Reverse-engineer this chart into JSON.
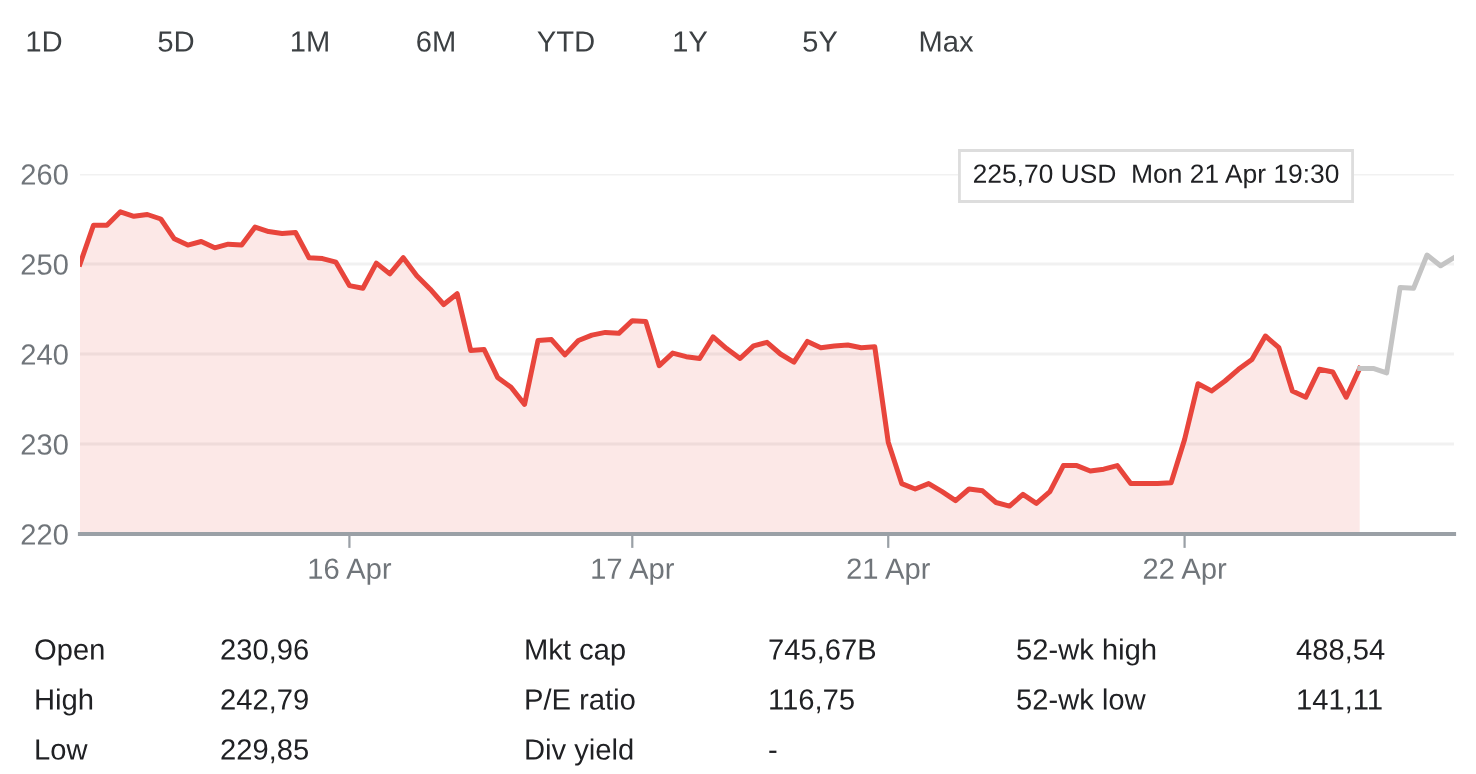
{
  "chart_data": [
    {
      "type": "other",
      "annotations": [
        "1D",
        "5D",
        "1M",
        "6M",
        "YTD",
        "1Y",
        "5Y",
        "Max"
      ]
    },
    {
      "type": "line",
      "categories": [
        null,
        null,
        null,
        null,
        null,
        null,
        null,
        null,
        null,
        null,
        null,
        null,
        null,
        null,
        null,
        null,
        null,
        null,
        null,
        null,
        "16 Apr",
        null,
        null,
        null,
        null,
        null,
        null,
        null,
        null,
        null,
        null,
        null,
        null,
        null,
        null,
        null,
        null,
        null,
        null,
        null,
        null,
        "17 Apr",
        null,
        null,
        null,
        null,
        null,
        null,
        null,
        null,
        null,
        null,
        null,
        null,
        null,
        null,
        null,
        null,
        null,
        null,
        "21 Apr",
        null,
        null,
        null,
        null,
        null,
        null,
        null,
        null,
        null,
        null,
        null,
        null,
        null,
        null,
        null,
        null,
        null,
        null,
        null,
        null,
        null,
        "22 Apr",
        null,
        null,
        null,
        null,
        null,
        null,
        null,
        null,
        null,
        null,
        null,
        null,
        null,
        null,
        null,
        null,
        null,
        null,
        null,
        null
      ],
      "series": [
        {
          "type": "area",
          "color": "#e8453c",
          "values": [
            250.0,
            254.3,
            254.3,
            255.8,
            255.3,
            255.5,
            255.0,
            252.8,
            252.1,
            252.5,
            251.8,
            252.2,
            252.1,
            254.1,
            253.6,
            253.4,
            253.5,
            250.7,
            250.6,
            250.2,
            247.6,
            247.3,
            250.1,
            248.9,
            250.7,
            248.7,
            247.2,
            245.5,
            246.7,
            240.4,
            240.5,
            237.4,
            236.3,
            234.4,
            241.5,
            241.6,
            239.9,
            241.5,
            242.1,
            242.4,
            242.3,
            243.7,
            243.6,
            238.7,
            240.1,
            239.7,
            239.5,
            241.9,
            240.6,
            239.5,
            240.9,
            241.3,
            240.0,
            239.1,
            241.4,
            240.7,
            240.9,
            241.0,
            240.7,
            240.8,
            230.2,
            225.6,
            225.0,
            225.6,
            224.7,
            223.7,
            225.0,
            224.8,
            223.5,
            223.1,
            224.4,
            223.4,
            224.7,
            227.6,
            227.6,
            227.0,
            227.2,
            227.6,
            225.6,
            225.6,
            225.6,
            225.7,
            230.5,
            236.7,
            235.9,
            237.0,
            238.3,
            239.4,
            242.0,
            240.7,
            235.9,
            235.2,
            238.3,
            238.0,
            235.2,
            238.4,
            null,
            null,
            null,
            null,
            null,
            null,
            null
          ]
        },
        {
          "type": "line",
          "color": "#c4c4c4",
          "values": [
            null,
            null,
            null,
            null,
            null,
            null,
            null,
            null,
            null,
            null,
            null,
            null,
            null,
            null,
            null,
            null,
            null,
            null,
            null,
            null,
            null,
            null,
            null,
            null,
            null,
            null,
            null,
            null,
            null,
            null,
            null,
            null,
            null,
            null,
            null,
            null,
            null,
            null,
            null,
            null,
            null,
            null,
            null,
            null,
            null,
            null,
            null,
            null,
            null,
            null,
            null,
            null,
            null,
            null,
            null,
            null,
            null,
            null,
            null,
            null,
            null,
            null,
            null,
            null,
            null,
            null,
            null,
            null,
            null,
            null,
            null,
            null,
            null,
            null,
            null,
            null,
            null,
            null,
            null,
            null,
            null,
            null,
            null,
            null,
            null,
            null,
            null,
            null,
            null,
            null,
            null,
            null,
            null,
            null,
            null,
            238.4,
            238.4,
            237.9,
            247.4,
            247.3,
            251.0,
            249.8,
            250.7
          ]
        }
      ],
      "ylim": [
        220,
        260
      ],
      "yticks": [
        220,
        230,
        240,
        250,
        260
      ],
      "grid": "y",
      "annotations": [
        "225,70 USD  Mon 21 Apr 19:30"
      ]
    },
    {
      "type": "other",
      "annotations": [
        "Open",
        "230,96",
        "Mkt cap",
        "745,67B",
        "52-wk high",
        "488,54",
        "High",
        "242,79",
        "P/E ratio",
        "116,75",
        "52-wk low",
        "141,11",
        "Low",
        "229,85",
        "Div yield",
        "-"
      ]
    }
  ]
}
